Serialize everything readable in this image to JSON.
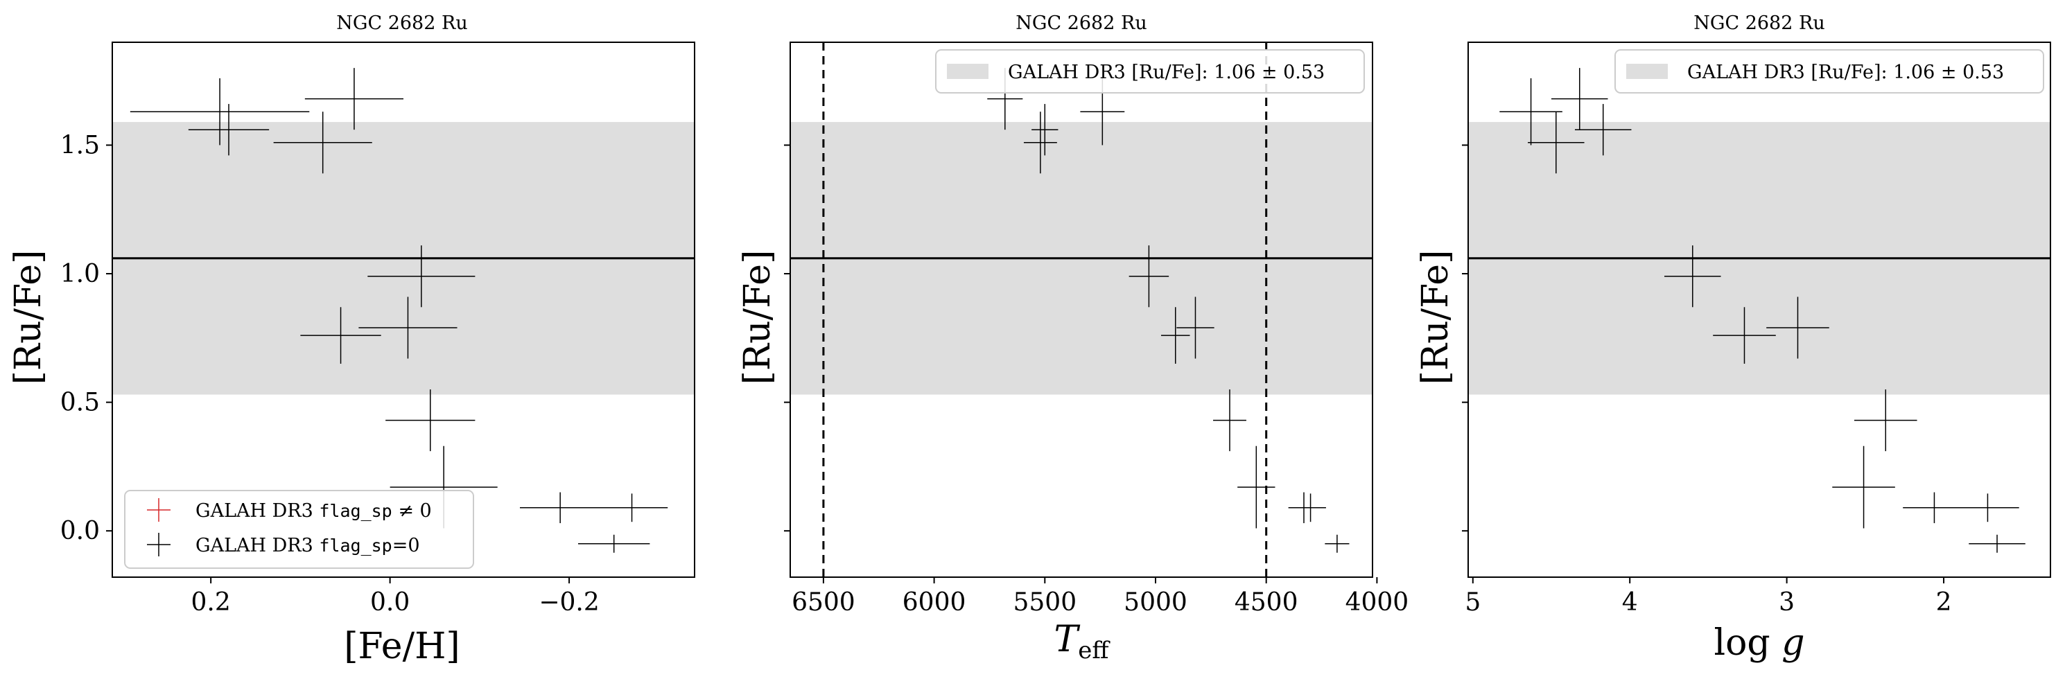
{
  "figure": {
    "panels": [
      {
        "title": "NGC 2682 Ru",
        "xlabel": "[Fe/H]",
        "xlabel_math": false,
        "ylabel": "[Ru/Fe]",
        "legend": {
          "position": "lower-left",
          "entries": [
            {
              "prefix": "GALAH DR3 ",
              "code": "flag_sp",
              "suffix": " ≠ 0",
              "color": "#d62728"
            },
            {
              "prefix": "GALAH DR3 ",
              "code": "flag_sp",
              "suffix": "=0",
              "color": "#000000"
            }
          ]
        }
      },
      {
        "title": "NGC 2682 Ru",
        "xlabel": "T",
        "xlabel_sub": "eff",
        "ylabel": "[Ru/Fe]",
        "legend": {
          "position": "upper-right",
          "band_label": "GALAH DR3 [Ru/Fe]: 1.06 ± 0.53"
        }
      },
      {
        "title": "NGC 2682 Ru",
        "xlabel": "log g",
        "ylabel": "[Ru/Fe]",
        "legend": {
          "position": "upper-right",
          "band_label": "GALAH DR3 [Ru/Fe]: 1.06 ± 0.53"
        }
      }
    ]
  },
  "chart_data": [
    {
      "type": "scatter",
      "title": "NGC 2682 Ru",
      "xlabel": "[Fe/H]",
      "ylabel": "[Ru/Fe]",
      "xlim": [
        0.31,
        -0.34
      ],
      "ylim": [
        -0.18,
        1.9
      ],
      "xticks": [
        0.2,
        0.0,
        -0.2
      ],
      "xtick_labels": [
        "0.2",
        "0.0",
        "−0.2"
      ],
      "yticks": [
        0.0,
        0.5,
        1.0,
        1.5
      ],
      "ytick_labels": [
        "0.0",
        "0.5",
        "1.0",
        "1.5"
      ],
      "band": {
        "center": 1.06,
        "halfwidth": 0.53,
        "color": "#dedede"
      },
      "hline": 1.06,
      "series": [
        {
          "name": "GALAH DR3 flag_sp=0",
          "color": "#000000",
          "points": [
            {
              "x": 0.19,
              "y": 1.63,
              "xerr": 0.1,
              "yerr": 0.13
            },
            {
              "x": 0.18,
              "y": 1.56,
              "xerr": 0.045,
              "yerr": 0.1
            },
            {
              "x": 0.04,
              "y": 1.68,
              "xerr": 0.055,
              "yerr": 0.12
            },
            {
              "x": 0.075,
              "y": 1.51,
              "xerr": 0.055,
              "yerr": 0.12
            },
            {
              "x": -0.035,
              "y": 0.99,
              "xerr": 0.06,
              "yerr": 0.12
            },
            {
              "x": 0.055,
              "y": 0.76,
              "xerr": 0.045,
              "yerr": 0.11
            },
            {
              "x": -0.02,
              "y": 0.79,
              "xerr": 0.055,
              "yerr": 0.12
            },
            {
              "x": -0.045,
              "y": 0.43,
              "xerr": 0.05,
              "yerr": 0.12
            },
            {
              "x": -0.06,
              "y": 0.17,
              "xerr": 0.06,
              "yerr": 0.16
            },
            {
              "x": -0.19,
              "y": 0.09,
              "xerr": 0.045,
              "yerr": 0.06
            },
            {
              "x": -0.27,
              "y": 0.09,
              "xerr": 0.04,
              "yerr": 0.055
            },
            {
              "x": -0.25,
              "y": -0.05,
              "xerr": 0.04,
              "yerr": 0.035
            }
          ]
        }
      ]
    },
    {
      "type": "scatter",
      "title": "NGC 2682 Ru",
      "xlabel": "T_eff",
      "ylabel": "[Ru/Fe]",
      "xlim": [
        6650,
        4020
      ],
      "ylim": [
        -0.18,
        1.9
      ],
      "xticks": [
        6500,
        6000,
        5500,
        5000,
        4500,
        4000
      ],
      "xtick_labels": [
        "6500",
        "6000",
        "5500",
        "5000",
        "4500",
        "4000"
      ],
      "yticks": [
        0.0,
        0.5,
        1.0,
        1.5
      ],
      "band": {
        "center": 1.06,
        "halfwidth": 0.53,
        "label": "GALAH DR3 [Ru/Fe]: 1.06 ± 0.53",
        "color": "#dedede"
      },
      "hline": 1.06,
      "vlines": [
        6500,
        4500
      ],
      "series": [
        {
          "color": "#000000",
          "points": [
            {
              "x": 5680,
              "y": 1.68,
              "xerr": 80,
              "yerr": 0.12
            },
            {
              "x": 5500,
              "y": 1.56,
              "xerr": 60,
              "yerr": 0.1
            },
            {
              "x": 5520,
              "y": 1.51,
              "xerr": 75,
              "yerr": 0.12
            },
            {
              "x": 5240,
              "y": 1.63,
              "xerr": 100,
              "yerr": 0.13
            },
            {
              "x": 5030,
              "y": 0.99,
              "xerr": 90,
              "yerr": 0.12
            },
            {
              "x": 4910,
              "y": 0.76,
              "xerr": 65,
              "yerr": 0.11
            },
            {
              "x": 4820,
              "y": 0.79,
              "xerr": 85,
              "yerr": 0.12
            },
            {
              "x": 4665,
              "y": 0.43,
              "xerr": 75,
              "yerr": 0.12
            },
            {
              "x": 4545,
              "y": 0.17,
              "xerr": 85,
              "yerr": 0.16
            },
            {
              "x": 4330,
              "y": 0.09,
              "xerr": 70,
              "yerr": 0.06
            },
            {
              "x": 4300,
              "y": 0.09,
              "xerr": 70,
              "yerr": 0.055
            },
            {
              "x": 4180,
              "y": -0.05,
              "xerr": 55,
              "yerr": 0.035
            }
          ]
        }
      ]
    },
    {
      "type": "scatter",
      "title": "NGC 2682 Ru",
      "xlabel": "log g",
      "ylabel": "[Ru/Fe]",
      "xlim": [
        5.03,
        1.32
      ],
      "ylim": [
        -0.18,
        1.9
      ],
      "xticks": [
        5,
        4,
        3,
        2
      ],
      "xtick_labels": [
        "5",
        "4",
        "3",
        "2"
      ],
      "yticks": [
        0.0,
        0.5,
        1.0,
        1.5
      ],
      "band": {
        "center": 1.06,
        "halfwidth": 0.53,
        "label": "GALAH DR3 [Ru/Fe]: 1.06 ± 0.53",
        "color": "#dedede"
      },
      "hline": 1.06,
      "series": [
        {
          "color": "#000000",
          "points": [
            {
              "x": 4.63,
              "y": 1.63,
              "xerr": 0.2,
              "yerr": 0.13
            },
            {
              "x": 4.47,
              "y": 1.51,
              "xerr": 0.18,
              "yerr": 0.12
            },
            {
              "x": 4.32,
              "y": 1.68,
              "xerr": 0.18,
              "yerr": 0.12
            },
            {
              "x": 4.17,
              "y": 1.56,
              "xerr": 0.18,
              "yerr": 0.1
            },
            {
              "x": 3.6,
              "y": 0.99,
              "xerr": 0.18,
              "yerr": 0.12
            },
            {
              "x": 3.27,
              "y": 0.76,
              "xerr": 0.2,
              "yerr": 0.11
            },
            {
              "x": 2.93,
              "y": 0.79,
              "xerr": 0.2,
              "yerr": 0.12
            },
            {
              "x": 2.37,
              "y": 0.43,
              "xerr": 0.2,
              "yerr": 0.12
            },
            {
              "x": 2.51,
              "y": 0.17,
              "xerr": 0.2,
              "yerr": 0.16
            },
            {
              "x": 2.06,
              "y": 0.09,
              "xerr": 0.2,
              "yerr": 0.06
            },
            {
              "x": 1.72,
              "y": 0.09,
              "xerr": 0.2,
              "yerr": 0.055
            },
            {
              "x": 1.66,
              "y": -0.05,
              "xerr": 0.18,
              "yerr": 0.035
            }
          ]
        }
      ]
    }
  ]
}
